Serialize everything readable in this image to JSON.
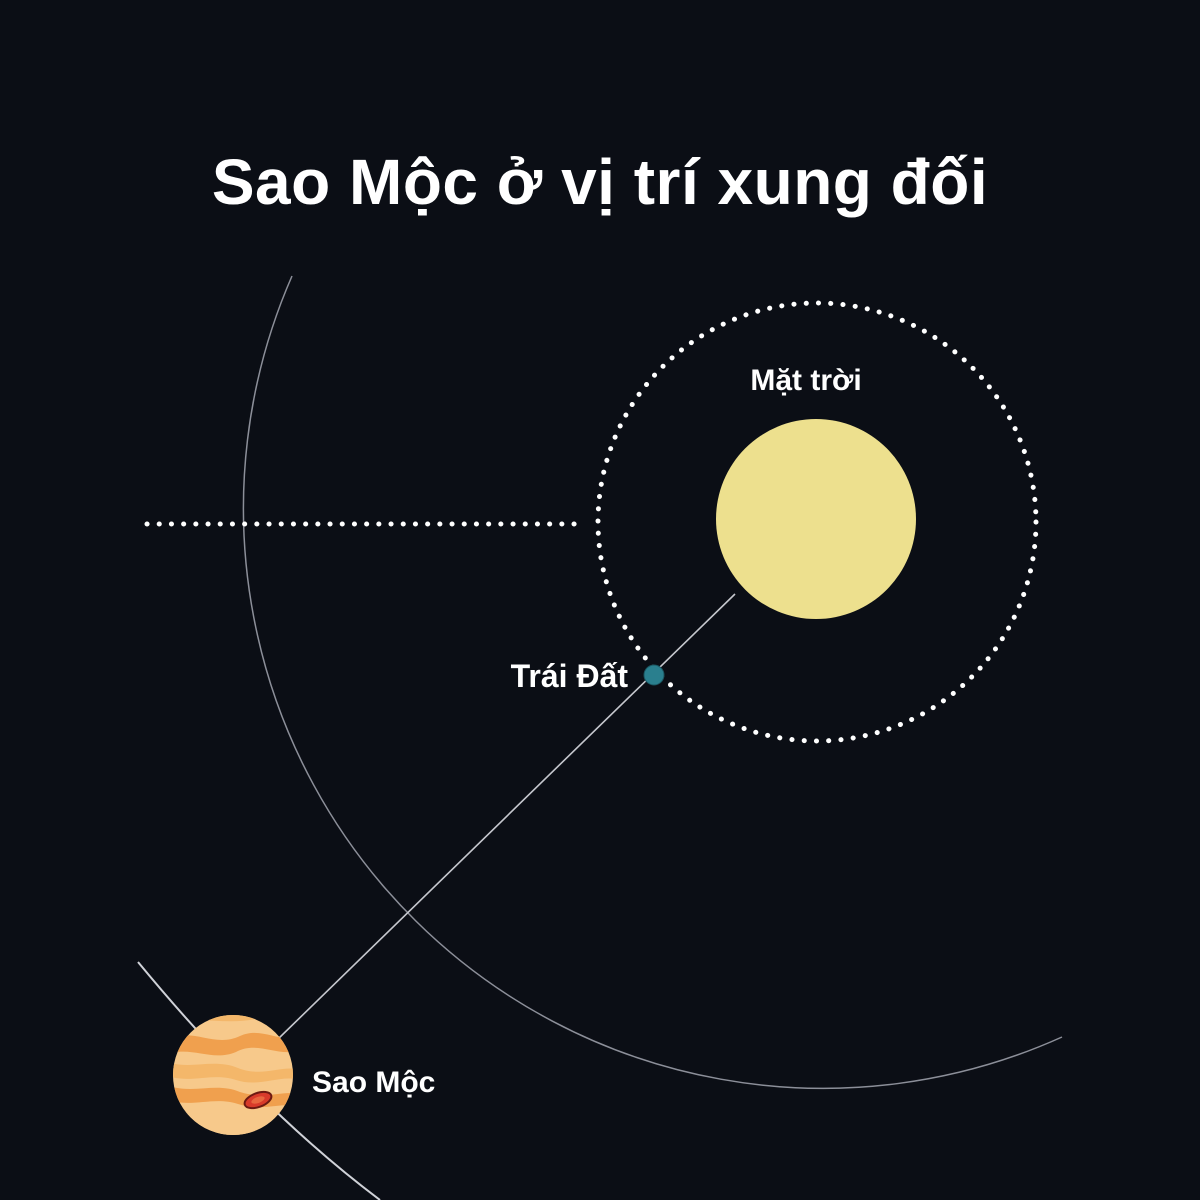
{
  "title": "Sao Mộc ở vị trí xung đối",
  "bodies": {
    "sun": {
      "label": "Mặt trời",
      "color": "#ede08e"
    },
    "earth": {
      "label": "Trái Đất",
      "color": "#2a7f8e"
    },
    "jupiter": {
      "label": "Sao Mộc"
    }
  },
  "colors": {
    "background": "#0b0e15",
    "orbit_line": "#8c8f99",
    "dots": "#ffffff",
    "jupiter_base": "#f7c98b",
    "jupiter_band": "#f0a04e",
    "jupiter_spot": "#d83a2a"
  }
}
